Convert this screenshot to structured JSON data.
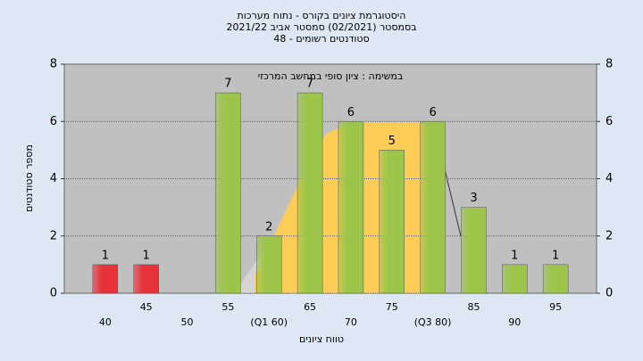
{
  "chart_data": {
    "type": "bar",
    "title": [
      "היסטוגרמת ציונים בקורס - נתוח מערכות",
      "בסמסטר  (02/2021)  סמסטר אביב 2021/22",
      "סטודנטים רשומים - 48"
    ],
    "annotation": "במשימה : ציון סופי במחשב המרכזי",
    "x_label": "טווח ציונים",
    "y_label": "מספר סטודנטים",
    "categories": [
      "40",
      "45",
      "50",
      "55",
      "(Q1 60)",
      "65",
      "70",
      "75",
      "(Q3 80)",
      "85",
      "90",
      "95"
    ],
    "values": [
      1,
      1,
      0,
      7,
      2,
      7,
      6,
      5,
      6,
      3,
      1,
      1
    ],
    "colors": [
      "#e8323a",
      "#e8323a",
      "#9cc54a",
      "#9cc54a",
      "#9cc54a",
      "#9cc54a",
      "#9cc54a",
      "#9cc54a",
      "#9cc54a",
      "#9cc54a",
      "#9cc54a",
      "#9cc54a"
    ],
    "ylim": [
      0,
      8
    ],
    "yticks": [
      0,
      2,
      4,
      6,
      8
    ],
    "y2lim": [
      0,
      8
    ],
    "y2ticks": [
      0,
      2,
      4,
      6,
      8
    ],
    "grid": true
  }
}
